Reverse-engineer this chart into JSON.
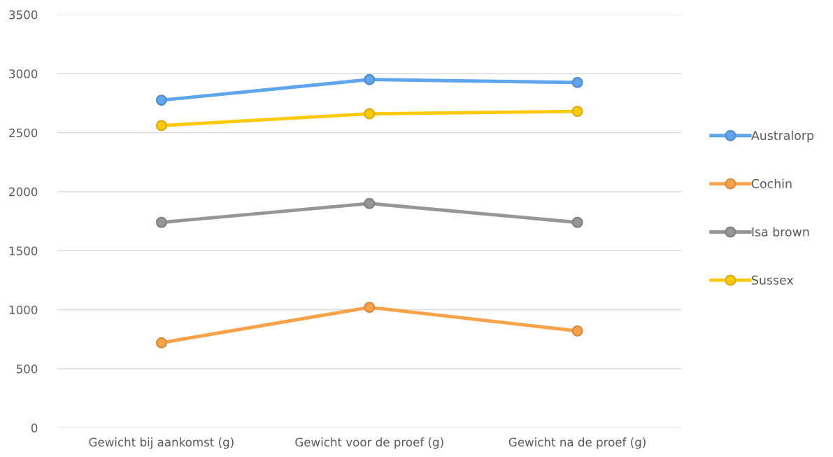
{
  "chart_data": {
    "type": "line",
    "categories": [
      "Gewicht bij aankomst (g)",
      "Gewicht voor de proef (g)",
      "Gewicht na de proef (g)"
    ],
    "series": [
      {
        "name": "Australorp",
        "color": "#5ea5ee",
        "values": [
          2775,
          2950,
          2925
        ]
      },
      {
        "name": "Cochin",
        "color": "#f9a24a",
        "values": [
          720,
          1020,
          820
        ]
      },
      {
        "name": "Isa brown",
        "color": "#969696",
        "values": [
          1740,
          1900,
          1740
        ]
      },
      {
        "name": "Sussex",
        "color": "#ffc90e",
        "values": [
          2560,
          2660,
          2680
        ]
      }
    ],
    "ylim": [
      0,
      3500
    ],
    "yticks": [
      0,
      500,
      1000,
      1500,
      2000,
      2500,
      3000,
      3500
    ],
    "grid": "y",
    "legend": "right",
    "marker": "circle",
    "line_style": "solid"
  }
}
